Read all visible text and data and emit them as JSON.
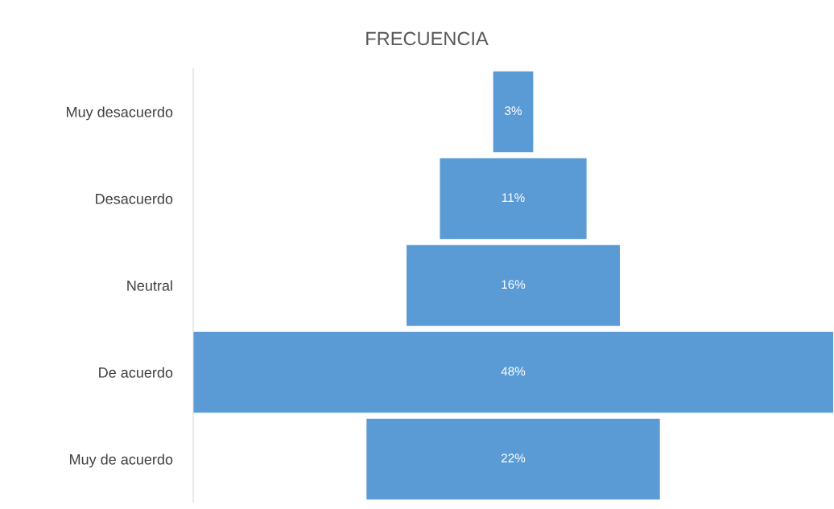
{
  "chart_data": {
    "type": "other",
    "title": "FRECUENCIA",
    "categories": [
      "Muy desacuerdo",
      "Desacuerdo",
      "Neutral",
      "De acuerdo",
      "Muy de acuerdo"
    ],
    "values": [
      3,
      11,
      16,
      48,
      22
    ],
    "value_labels": [
      "3%",
      "11%",
      "16%",
      "48%",
      "22%"
    ],
    "color": "#5b9bd5"
  }
}
